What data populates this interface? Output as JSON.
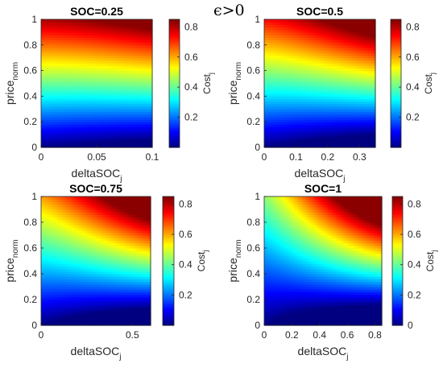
{
  "suptitle": "ϵ>0",
  "chart_data": [
    {
      "type": "heatmap",
      "title": "SOC=0.25",
      "xlabel": "deltaSOC",
      "xlabel_sub": "j",
      "ylabel": "price",
      "ylabel_sub": "norm",
      "cbar_label": "Cost",
      "cbar_label_sub": "j",
      "x_ticks": [
        "0",
        "0.05",
        "0.1"
      ],
      "y_ticks": [
        "0",
        "0.2",
        "0.4",
        "0.6",
        "0.8",
        "1"
      ],
      "cbar_ticks": [
        "0.2",
        "0.4",
        "0.6",
        "0.8"
      ],
      "xlim": [
        0,
        0.1
      ],
      "ylim": [
        0,
        1
      ],
      "clim": [
        0,
        0.85
      ],
      "soc": 0.25,
      "colormap": "jet"
    },
    {
      "type": "heatmap",
      "title": "SOC=0.5",
      "xlabel": "deltaSOC",
      "xlabel_sub": "j",
      "ylabel": "price",
      "ylabel_sub": "norm",
      "cbar_label": "Cost",
      "cbar_label_sub": "j",
      "x_ticks": [
        "0",
        "0.1",
        "0.2",
        "0.3"
      ],
      "y_ticks": [
        "0",
        "0.2",
        "0.4",
        "0.6",
        "0.8",
        "1"
      ],
      "cbar_ticks": [
        "0.2",
        "0.4",
        "0.6",
        "0.8"
      ],
      "xlim": [
        0,
        0.35
      ],
      "ylim": [
        0,
        1
      ],
      "clim": [
        0,
        0.85
      ],
      "soc": 0.5,
      "colormap": "jet"
    },
    {
      "type": "heatmap",
      "title": "SOC=0.75",
      "xlabel": "deltaSOC",
      "xlabel_sub": "j",
      "ylabel": "price",
      "ylabel_sub": "norm",
      "cbar_label": "Cost",
      "cbar_label_sub": "j",
      "x_ticks": [
        "0",
        "0.5"
      ],
      "y_ticks": [
        "0",
        "0.2",
        "0.4",
        "0.6",
        "0.8",
        "1"
      ],
      "cbar_ticks": [
        "0.2",
        "0.4",
        "0.6",
        "0.8"
      ],
      "xlim": [
        0,
        0.6
      ],
      "ylim": [
        0,
        1
      ],
      "clim": [
        0,
        0.85
      ],
      "soc": 0.75,
      "colormap": "jet"
    },
    {
      "type": "heatmap",
      "title": "SOC=1",
      "xlabel": "deltaSOC",
      "xlabel_sub": "j",
      "ylabel": "price",
      "ylabel_sub": "norm",
      "cbar_label": "Cost",
      "cbar_label_sub": "j",
      "x_ticks": [
        "0",
        "0.2",
        "0.4",
        "0.6",
        "0.8"
      ],
      "y_ticks": [
        "0",
        "0.2",
        "0.4",
        "0.6",
        "0.8",
        "1"
      ],
      "cbar_ticks": [
        "0",
        "0.2",
        "0.4",
        "0.6",
        "0.8"
      ],
      "xlim": [
        0,
        0.85
      ],
      "ylim": [
        0,
        1
      ],
      "clim": [
        0,
        0.85
      ],
      "soc": 1.0,
      "colormap": "jet"
    }
  ]
}
